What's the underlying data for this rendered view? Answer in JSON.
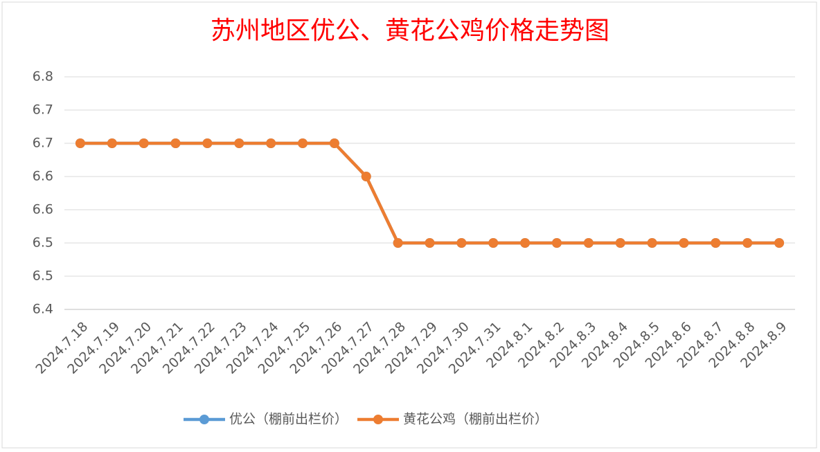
{
  "chart_data": {
    "type": "line",
    "title": "苏州地区优公、黄花公鸡价格走势图",
    "categories": [
      "2024.7.18",
      "2024.7.19",
      "2024.7.20",
      "2024.7.21",
      "2024.7.22",
      "2024.7.23",
      "2024.7.24",
      "2024.7.25",
      "2024.7.26",
      "2024.7.27",
      "2024.7.28",
      "2024.7.29",
      "2024.7.30",
      "2024.7.31",
      "2024.8.1",
      "2024.8.2",
      "2024.8.3",
      "2024.8.4",
      "2024.8.5",
      "2024.8.6",
      "2024.8.7",
      "2024.8.8",
      "2024.8.9"
    ],
    "series": [
      {
        "name": "优公（棚前出栏价）",
        "color": "#5b9bd5",
        "values": [
          6.65,
          6.65,
          6.65,
          6.65,
          6.65,
          6.65,
          6.65,
          6.65,
          6.65,
          6.6,
          6.5,
          6.5,
          6.5,
          6.5,
          6.5,
          6.5,
          6.5,
          6.5,
          6.5,
          6.5,
          6.5,
          6.5,
          6.5
        ]
      },
      {
        "name": "黄花公鸡（棚前出栏价）",
        "color": "#ed7d31",
        "values": [
          6.65,
          6.65,
          6.65,
          6.65,
          6.65,
          6.65,
          6.65,
          6.65,
          6.65,
          6.6,
          6.5,
          6.5,
          6.5,
          6.5,
          6.5,
          6.5,
          6.5,
          6.5,
          6.5,
          6.5,
          6.5,
          6.5,
          6.5
        ]
      }
    ],
    "ylim": [
      6.4,
      6.75
    ],
    "yticks": [
      6.4,
      {
        "value": 6.45,
        "label": "6.5"
      },
      6.5,
      {
        "value": 6.55,
        "label": "6.6"
      },
      6.6,
      {
        "value": 6.65,
        "label": "6.7"
      },
      6.7,
      {
        "value": 6.75,
        "label": "6.8"
      }
    ],
    "grid": true,
    "legend": "bottom"
  }
}
